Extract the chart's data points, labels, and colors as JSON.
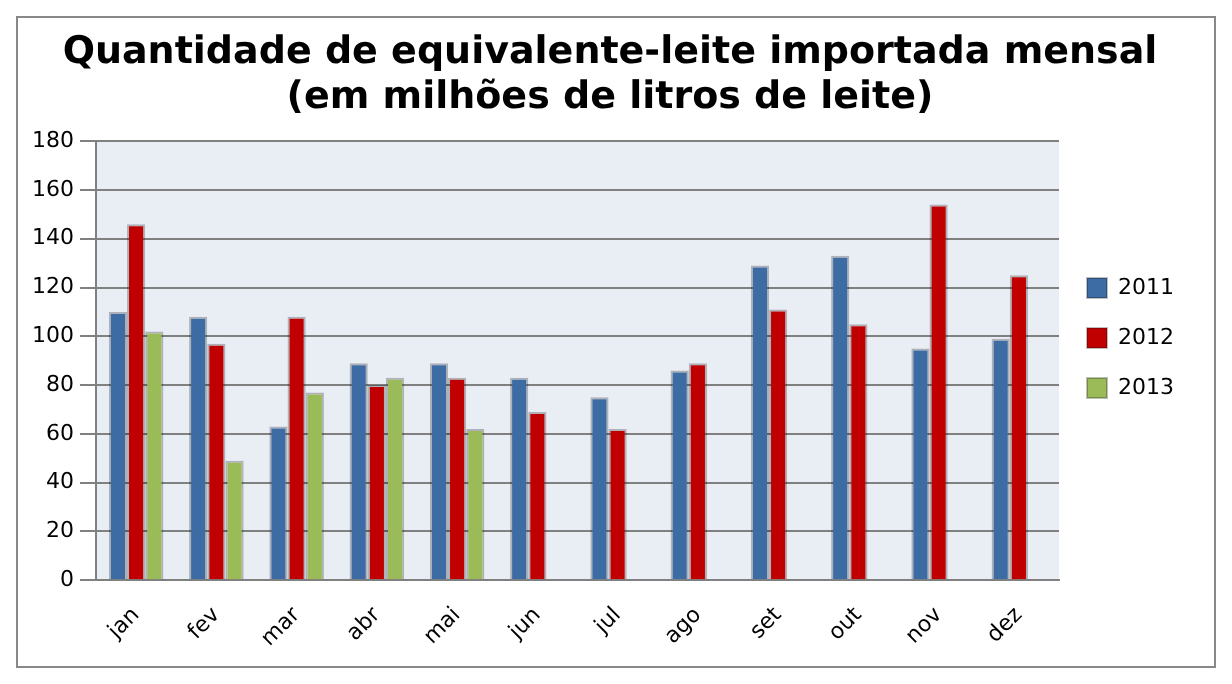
{
  "chart_data": {
    "type": "bar",
    "title": "Quantidade de equivalente-leite importada mensal\n(em milhões de litros de leite)",
    "categories": [
      "jan",
      "fev",
      "mar",
      "abr",
      "mai",
      "jun",
      "jul",
      "ago",
      "set",
      "out",
      "nov",
      "dez"
    ],
    "series": [
      {
        "name": "2011",
        "color": "#3d6ba3",
        "values": [
          110,
          108,
          63,
          89,
          89,
          83,
          75,
          86,
          129,
          133,
          95,
          99
        ]
      },
      {
        "name": "2012",
        "color": "#c00000",
        "values": [
          146,
          97,
          108,
          80,
          83,
          69,
          62,
          89,
          111,
          105,
          154,
          125
        ]
      },
      {
        "name": "2013",
        "color": "#9bbb59",
        "values": [
          102,
          49,
          77,
          83,
          62,
          null,
          null,
          null,
          null,
          null,
          null,
          null
        ]
      }
    ],
    "ylim": [
      0,
      180
    ],
    "yticks": [
      0,
      20,
      40,
      60,
      80,
      100,
      120,
      140,
      160,
      180
    ],
    "grid": "y",
    "legend": "right"
  }
}
